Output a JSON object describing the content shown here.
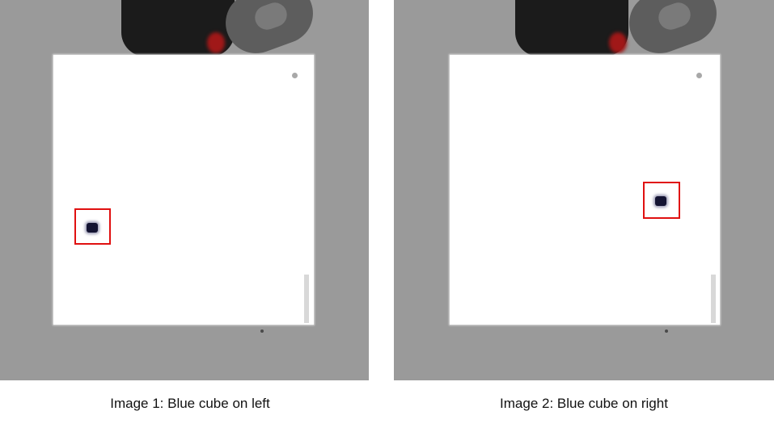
{
  "images": [
    {
      "caption": "Image 1: Blue cube on left"
    },
    {
      "caption": "Image 2: Blue cube on right"
    }
  ],
  "colors": {
    "background": "#9a9a9a",
    "table": "#ffffff",
    "cube": "#141432",
    "highlight": "#e01010"
  }
}
